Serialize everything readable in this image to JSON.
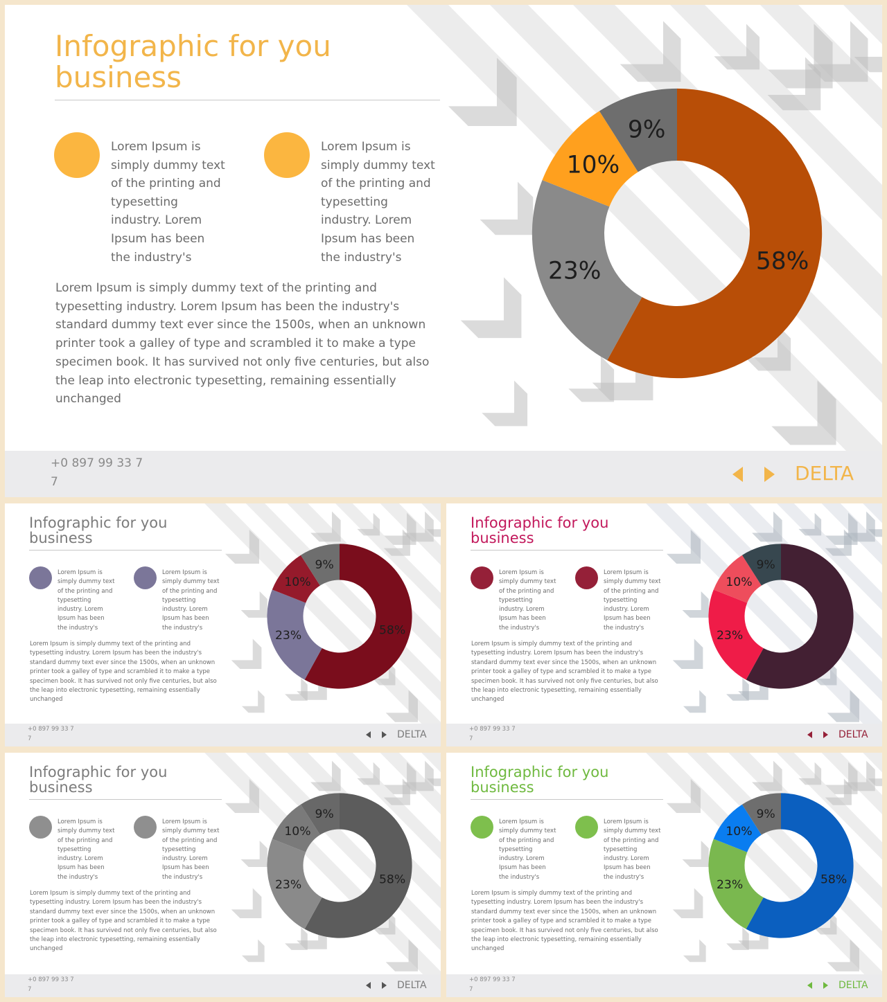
{
  "slides": [
    {
      "title": "Infographic for you\nbusiness",
      "blurb_left": "Lorem Ipsum is\nsimply dummy text\nof the printing and\ntypesetting\nindustry. Lorem\nIpsum has been\nthe industry's",
      "blurb_right": "Lorem Ipsum is\nsimply dummy text\nof the printing and\ntypesetting\nindustry. Lorem\nIpsum has been\nthe industry's",
      "paragraph": "Lorem Ipsum is simply dummy text of the printing and typesetting industry. Lorem Ipsum has been the industry's standard dummy text ever since the 1500s, when an unknown printer took a galley of type and scrambled it to make a type specimen book. It has survived not only five centuries, but also the leap into electronic typesetting, remaining essentially unchanged",
      "phone": "+0 897 99 33 7\n7",
      "brand": "DELTA",
      "colors": {
        "title": "#f2b54a",
        "dot": "#fbb640",
        "arrow": "#f2b54a",
        "brand": "#f2b54a",
        "stripe": "#dcdcdc",
        "chevron": "#bdbdbd"
      },
      "chart_data": {
        "type": "pie",
        "hole": true,
        "slices": [
          {
            "label": "58%",
            "value": 58,
            "color": "#b84e07"
          },
          {
            "label": "23%",
            "value": 23,
            "color": "#8a8a8a"
          },
          {
            "label": "10%",
            "value": 10,
            "color": "#ffa01e"
          },
          {
            "label": "9%",
            "value": 9,
            "color": "#6e6e6e"
          }
        ]
      }
    },
    {
      "title": "Infographic for you\nbusiness",
      "blurb_left": "Lorem Ipsum is\nsimply dummy text\nof the printing and\ntypesetting\nindustry. Lorem\nIpsum has been\nthe industry's",
      "blurb_right": "Lorem Ipsum is\nsimply dummy text\nof the printing and\ntypesetting\nindustry. Lorem\nIpsum has been\nthe industry's",
      "paragraph": "Lorem Ipsum is simply dummy text of the printing and typesetting industry. Lorem Ipsum has been the industry's standard dummy text ever since the 1500s, when an unknown printer took a galley of type and scrambled it to make a type specimen book. It has survived not only five centuries, but also the leap into electronic typesetting, remaining essentially unchanged",
      "phone": "+0 897 99 33 7\n7",
      "brand": "DELTA",
      "colors": {
        "title": "#7b7b7b",
        "dot": "#7b7699",
        "arrow": "#555555",
        "brand": "#7b7b7b",
        "stripe": "#dedede",
        "chevron": "#bdbdbd"
      },
      "chart_data": {
        "type": "pie",
        "hole": true,
        "slices": [
          {
            "label": "58%",
            "value": 58,
            "color": "#7a0d1c"
          },
          {
            "label": "23%",
            "value": 23,
            "color": "#7b7699"
          },
          {
            "label": "10%",
            "value": 10,
            "color": "#951a2b"
          },
          {
            "label": "9%",
            "value": 9,
            "color": "#6e6e6e"
          }
        ]
      }
    },
    {
      "title": "Infographic for you\nbusiness",
      "blurb_left": "Lorem Ipsum is\nsimply dummy text\nof the printing and\ntypesetting\nindustry. Lorem\nIpsum has been\nthe industry's",
      "blurb_right": "Lorem Ipsum is\nsimply dummy text\nof the printing and\ntypesetting\nindustry. Lorem\nIpsum has been\nthe industry's",
      "paragraph": "Lorem Ipsum is simply dummy text of the printing and typesetting industry. Lorem Ipsum has been the industry's standard dummy text ever since the 1500s, when an unknown printer took a galley of type and scrambled it to make a type specimen book. It has survived not only five centuries, but also the leap into electronic typesetting, remaining essentially unchanged",
      "phone": "+0 897 99 33 7\n7",
      "brand": "DELTA",
      "colors": {
        "title": "#c2185b",
        "dot": "#952038",
        "arrow": "#952038",
        "brand": "#952038",
        "stripe": "#d8dde3",
        "chevron": "#a9b2bb"
      },
      "chart_data": {
        "type": "pie",
        "hole": true,
        "slices": [
          {
            "label": "",
            "value": 58,
            "color": "#432033"
          },
          {
            "label": "23%",
            "value": 23,
            "color": "#ef1c48"
          },
          {
            "label": "10%",
            "value": 10,
            "color": "#ee4d5c"
          },
          {
            "label": "9%",
            "value": 9,
            "color": "#37474f"
          }
        ]
      }
    },
    {
      "title": "Infographic for you\nbusiness",
      "blurb_left": "Lorem Ipsum is\nsimply dummy text\nof the printing and\ntypesetting\nindustry. Lorem\nIpsum has been\nthe industry's",
      "blurb_right": "Lorem Ipsum is\nsimply dummy text\nof the printing and\ntypesetting\nindustry. Lorem\nIpsum has been\nthe industry's",
      "paragraph": "Lorem Ipsum is simply dummy text of the printing and typesetting industry. Lorem Ipsum has been the industry's standard dummy text ever since the 1500s, when an unknown printer took a galley of type and scrambled it to make a type specimen book. It has survived not only five centuries, but also the leap into electronic typesetting, remaining essentially unchanged",
      "phone": "+0 897 99 33 7\n7",
      "brand": "DELTA",
      "colors": {
        "title": "#7b7b7b",
        "dot": "#8f8f8f",
        "arrow": "#555555",
        "brand": "#7b7b7b",
        "stripe": "#dedede",
        "chevron": "#bdbdbd"
      },
      "chart_data": {
        "type": "pie",
        "hole": true,
        "slices": [
          {
            "label": "58%",
            "value": 58,
            "color": "#5c5c5c"
          },
          {
            "label": "23%",
            "value": 23,
            "color": "#8a8a8a"
          },
          {
            "label": "10%",
            "value": 10,
            "color": "#7a7a7a"
          },
          {
            "label": "9%",
            "value": 9,
            "color": "#686868"
          }
        ]
      }
    },
    {
      "title": "Infographic for you\nbusiness",
      "blurb_left": "Lorem Ipsum is\nsimply dummy text\nof the printing and\ntypesetting\nindustry. Lorem\nIpsum has been\nthe industry's",
      "blurb_right": "Lorem Ipsum is\nsimply dummy text\nof the printing and\ntypesetting\nindustry. Lorem\nIpsum has been\nthe industry's",
      "paragraph": "Lorem Ipsum is simply dummy text of the printing and typesetting industry. Lorem Ipsum has been the industry's standard dummy text ever since the 1500s, when an unknown printer took a galley of type and scrambled it to make a type specimen book. It has survived not only five centuries, but also the leap into electronic typesetting, remaining essentially unchanged",
      "phone": "+0 897 99 33 7\n7",
      "brand": "DELTA",
      "colors": {
        "title": "#6fb93f",
        "dot": "#7ebf4d",
        "arrow": "#6fb93f",
        "brand": "#6fb93f",
        "stripe": "#dedede",
        "chevron": "#bdbdbd"
      },
      "chart_data": {
        "type": "pie",
        "hole": true,
        "slices": [
          {
            "label": "58%",
            "value": 58,
            "color": "#0b5fbf"
          },
          {
            "label": "23%",
            "value": 23,
            "color": "#7ab84f"
          },
          {
            "label": "10%",
            "value": 10,
            "color": "#0a7df0"
          },
          {
            "label": "9%",
            "value": 9,
            "color": "#6e6e6e"
          }
        ]
      }
    }
  ]
}
